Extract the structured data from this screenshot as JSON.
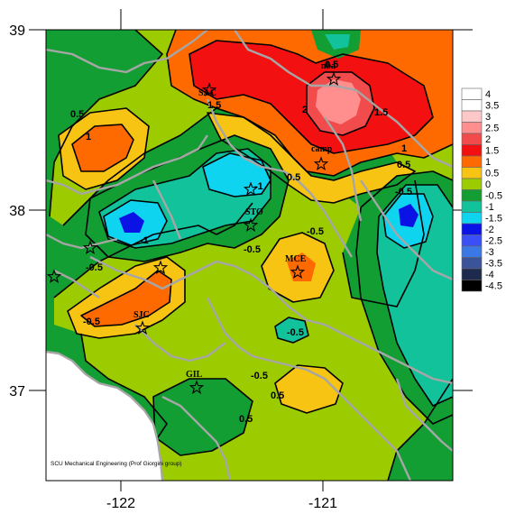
{
  "axes": {
    "x_ticks": [
      {
        "value": -122,
        "label": "-122"
      },
      {
        "value": -121,
        "label": "-121"
      }
    ],
    "y_ticks": [
      {
        "value": 39,
        "label": "39"
      },
      {
        "value": 38,
        "label": "38"
      },
      {
        "value": 37,
        "label": "37"
      }
    ]
  },
  "legend": {
    "entries": [
      {
        "label": "4",
        "color": "#ffffff"
      },
      {
        "label": "3.5",
        "color": "#ffffff"
      },
      {
        "label": "3",
        "color": "#ffc8c8"
      },
      {
        "label": "2.5",
        "color": "#ff8f8f"
      },
      {
        "label": "2",
        "color": "#f24b4b"
      },
      {
        "label": "1.5",
        "color": "#f21010"
      },
      {
        "label": "1",
        "color": "#ff6a00"
      },
      {
        "label": "0.5",
        "color": "#f7c413"
      },
      {
        "label": "0",
        "color": "#9ccc00"
      },
      {
        "label": "-0.5",
        "color": "#129e33"
      },
      {
        "label": "-1",
        "color": "#12c29b"
      },
      {
        "label": "-1.5",
        "color": "#0fd4f0"
      },
      {
        "label": "-2",
        "color": "#0a12e6"
      },
      {
        "label": "-2.5",
        "color": "#3a4ff5"
      },
      {
        "label": "-3",
        "color": "#3a78e6"
      },
      {
        "label": "-3.5",
        "color": "#3a5399"
      },
      {
        "label": "-4",
        "color": "#1e2a4d"
      },
      {
        "label": "-4.5",
        "color": "#000000"
      }
    ]
  },
  "contour_labels": [
    "0.5",
    "1",
    "1.5",
    "2",
    "1.5",
    "1",
    "0.5",
    "-0.5",
    "-1",
    "0.5",
    "-1",
    "-0.5",
    "0.5",
    "-0.5",
    "-0.5",
    "-0.5",
    "-0.5",
    "0.5",
    "-0.5",
    "0.5"
  ],
  "stations": [
    {
      "id": "SAC",
      "label": "SAC"
    },
    {
      "id": "MBE",
      "label": "nba"
    },
    {
      "id": "CAMP",
      "label": "camp"
    },
    {
      "id": "STO",
      "label": "STO"
    },
    {
      "id": "MCE",
      "label": "MCE"
    },
    {
      "id": "SJC",
      "label": "SJC"
    },
    {
      "id": "GIL",
      "label": "GIL"
    },
    {
      "id": "SFO",
      "label": ""
    },
    {
      "id": "OAK",
      "label": ""
    },
    {
      "id": "HWD",
      "label": ""
    },
    {
      "id": "HMB",
      "label": ""
    }
  ],
  "credit": "SCU Mechanical Engineering (Prof Giorgini group)",
  "colors": {
    "tick_color": "#000000",
    "boundary_color": "#a6a6a6",
    "ocean_color": "#ffffff"
  }
}
